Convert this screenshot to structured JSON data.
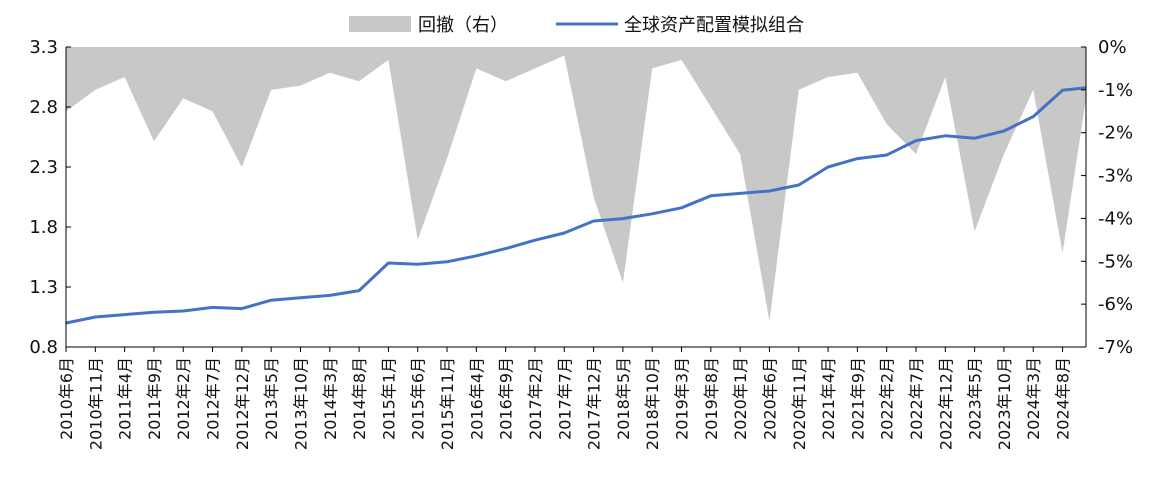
{
  "chart_data": {
    "type": "line",
    "title": "",
    "xlabel": "",
    "ylabel": "",
    "legend": {
      "placement": "top-center",
      "items": [
        {
          "label": "回撤（右）",
          "color": "#c8c8c8",
          "kind": "area"
        },
        {
          "label": "全球资产配置模拟组合",
          "color": "#4472c4",
          "kind": "line"
        }
      ]
    },
    "y_left": {
      "min": 0.8,
      "max": 3.3,
      "ticks": [
        "3.3",
        "2.8",
        "2.3",
        "1.8",
        "1.3",
        "0.8"
      ]
    },
    "y_right": {
      "min": -7,
      "max": 0,
      "ticks": [
        "0%",
        "-1%",
        "-2%",
        "-3%",
        "-4%",
        "-5%",
        "-6%",
        "-7%"
      ]
    },
    "x_ticks": [
      "2010年6月",
      "2010年11月",
      "2011年4月",
      "2011年9月",
      "2012年2月",
      "2012年7月",
      "2012年12月",
      "2013年5月",
      "2013年10月",
      "2014年3月",
      "2014年8月",
      "2015年1月",
      "2015年6月",
      "2015年11月",
      "2016年4月",
      "2016年9月",
      "2017年2月",
      "2017年7月",
      "2017年12月",
      "2018年5月",
      "2018年10月",
      "2019年3月",
      "2019年8月",
      "2020年1月",
      "2020年6月",
      "2020年11月",
      "2021年4月",
      "2021年9月",
      "2022年2月",
      "2022年7月",
      "2022年12月",
      "2023年5月",
      "2023年10月",
      "2024年3月",
      "2024年8月"
    ],
    "series": [
      {
        "name": "全球资产配置模拟组合",
        "axis": "left",
        "color": "#4472c4",
        "x": [
          "2010-06",
          "2010-11",
          "2011-04",
          "2011-09",
          "2012-02",
          "2012-07",
          "2012-12",
          "2013-05",
          "2013-10",
          "2014-03",
          "2014-08",
          "2015-01",
          "2015-06",
          "2015-11",
          "2016-04",
          "2016-09",
          "2017-02",
          "2017-07",
          "2017-12",
          "2018-05",
          "2018-10",
          "2019-03",
          "2019-08",
          "2020-01",
          "2020-06",
          "2020-11",
          "2021-04",
          "2021-09",
          "2022-02",
          "2022-07",
          "2022-12",
          "2023-05",
          "2023-10",
          "2024-03",
          "2024-08",
          "2024-12"
        ],
        "values": [
          1.0,
          1.05,
          1.07,
          1.09,
          1.1,
          1.13,
          1.12,
          1.19,
          1.21,
          1.23,
          1.27,
          1.5,
          1.49,
          1.51,
          1.56,
          1.62,
          1.69,
          1.75,
          1.85,
          1.87,
          1.91,
          1.96,
          2.06,
          2.08,
          2.1,
          2.15,
          2.3,
          2.37,
          2.4,
          2.52,
          2.56,
          2.54,
          2.6,
          2.72,
          2.94,
          2.96
        ]
      },
      {
        "name": "回撤（右）",
        "axis": "right",
        "color": "#c8c8c8",
        "x": [
          "2010-06",
          "2010-11",
          "2011-04",
          "2011-09",
          "2012-02",
          "2012-07",
          "2012-12",
          "2013-05",
          "2013-10",
          "2014-03",
          "2014-08",
          "2015-01",
          "2015-06",
          "2015-11",
          "2016-04",
          "2016-09",
          "2017-02",
          "2017-07",
          "2017-12",
          "2018-05",
          "2018-10",
          "2019-03",
          "2019-08",
          "2020-01",
          "2020-06",
          "2020-11",
          "2021-04",
          "2021-09",
          "2022-02",
          "2022-07",
          "2022-12",
          "2023-05",
          "2023-10",
          "2024-03",
          "2024-08",
          "2024-12"
        ],
        "values": [
          -1.5,
          -1.0,
          -0.7,
          -2.2,
          -1.2,
          -1.5,
          -2.8,
          -1.0,
          -0.9,
          -0.6,
          -0.8,
          -0.3,
          -4.5,
          -2.6,
          -0.5,
          -0.8,
          -0.5,
          -0.2,
          -3.5,
          -5.5,
          -0.5,
          -0.3,
          -1.4,
          -2.5,
          -6.4,
          -1.0,
          -0.7,
          -0.6,
          -1.8,
          -2.5,
          -0.7,
          -4.3,
          -2.5,
          -1.0,
          -4.8,
          -1.2
        ]
      }
    ]
  }
}
